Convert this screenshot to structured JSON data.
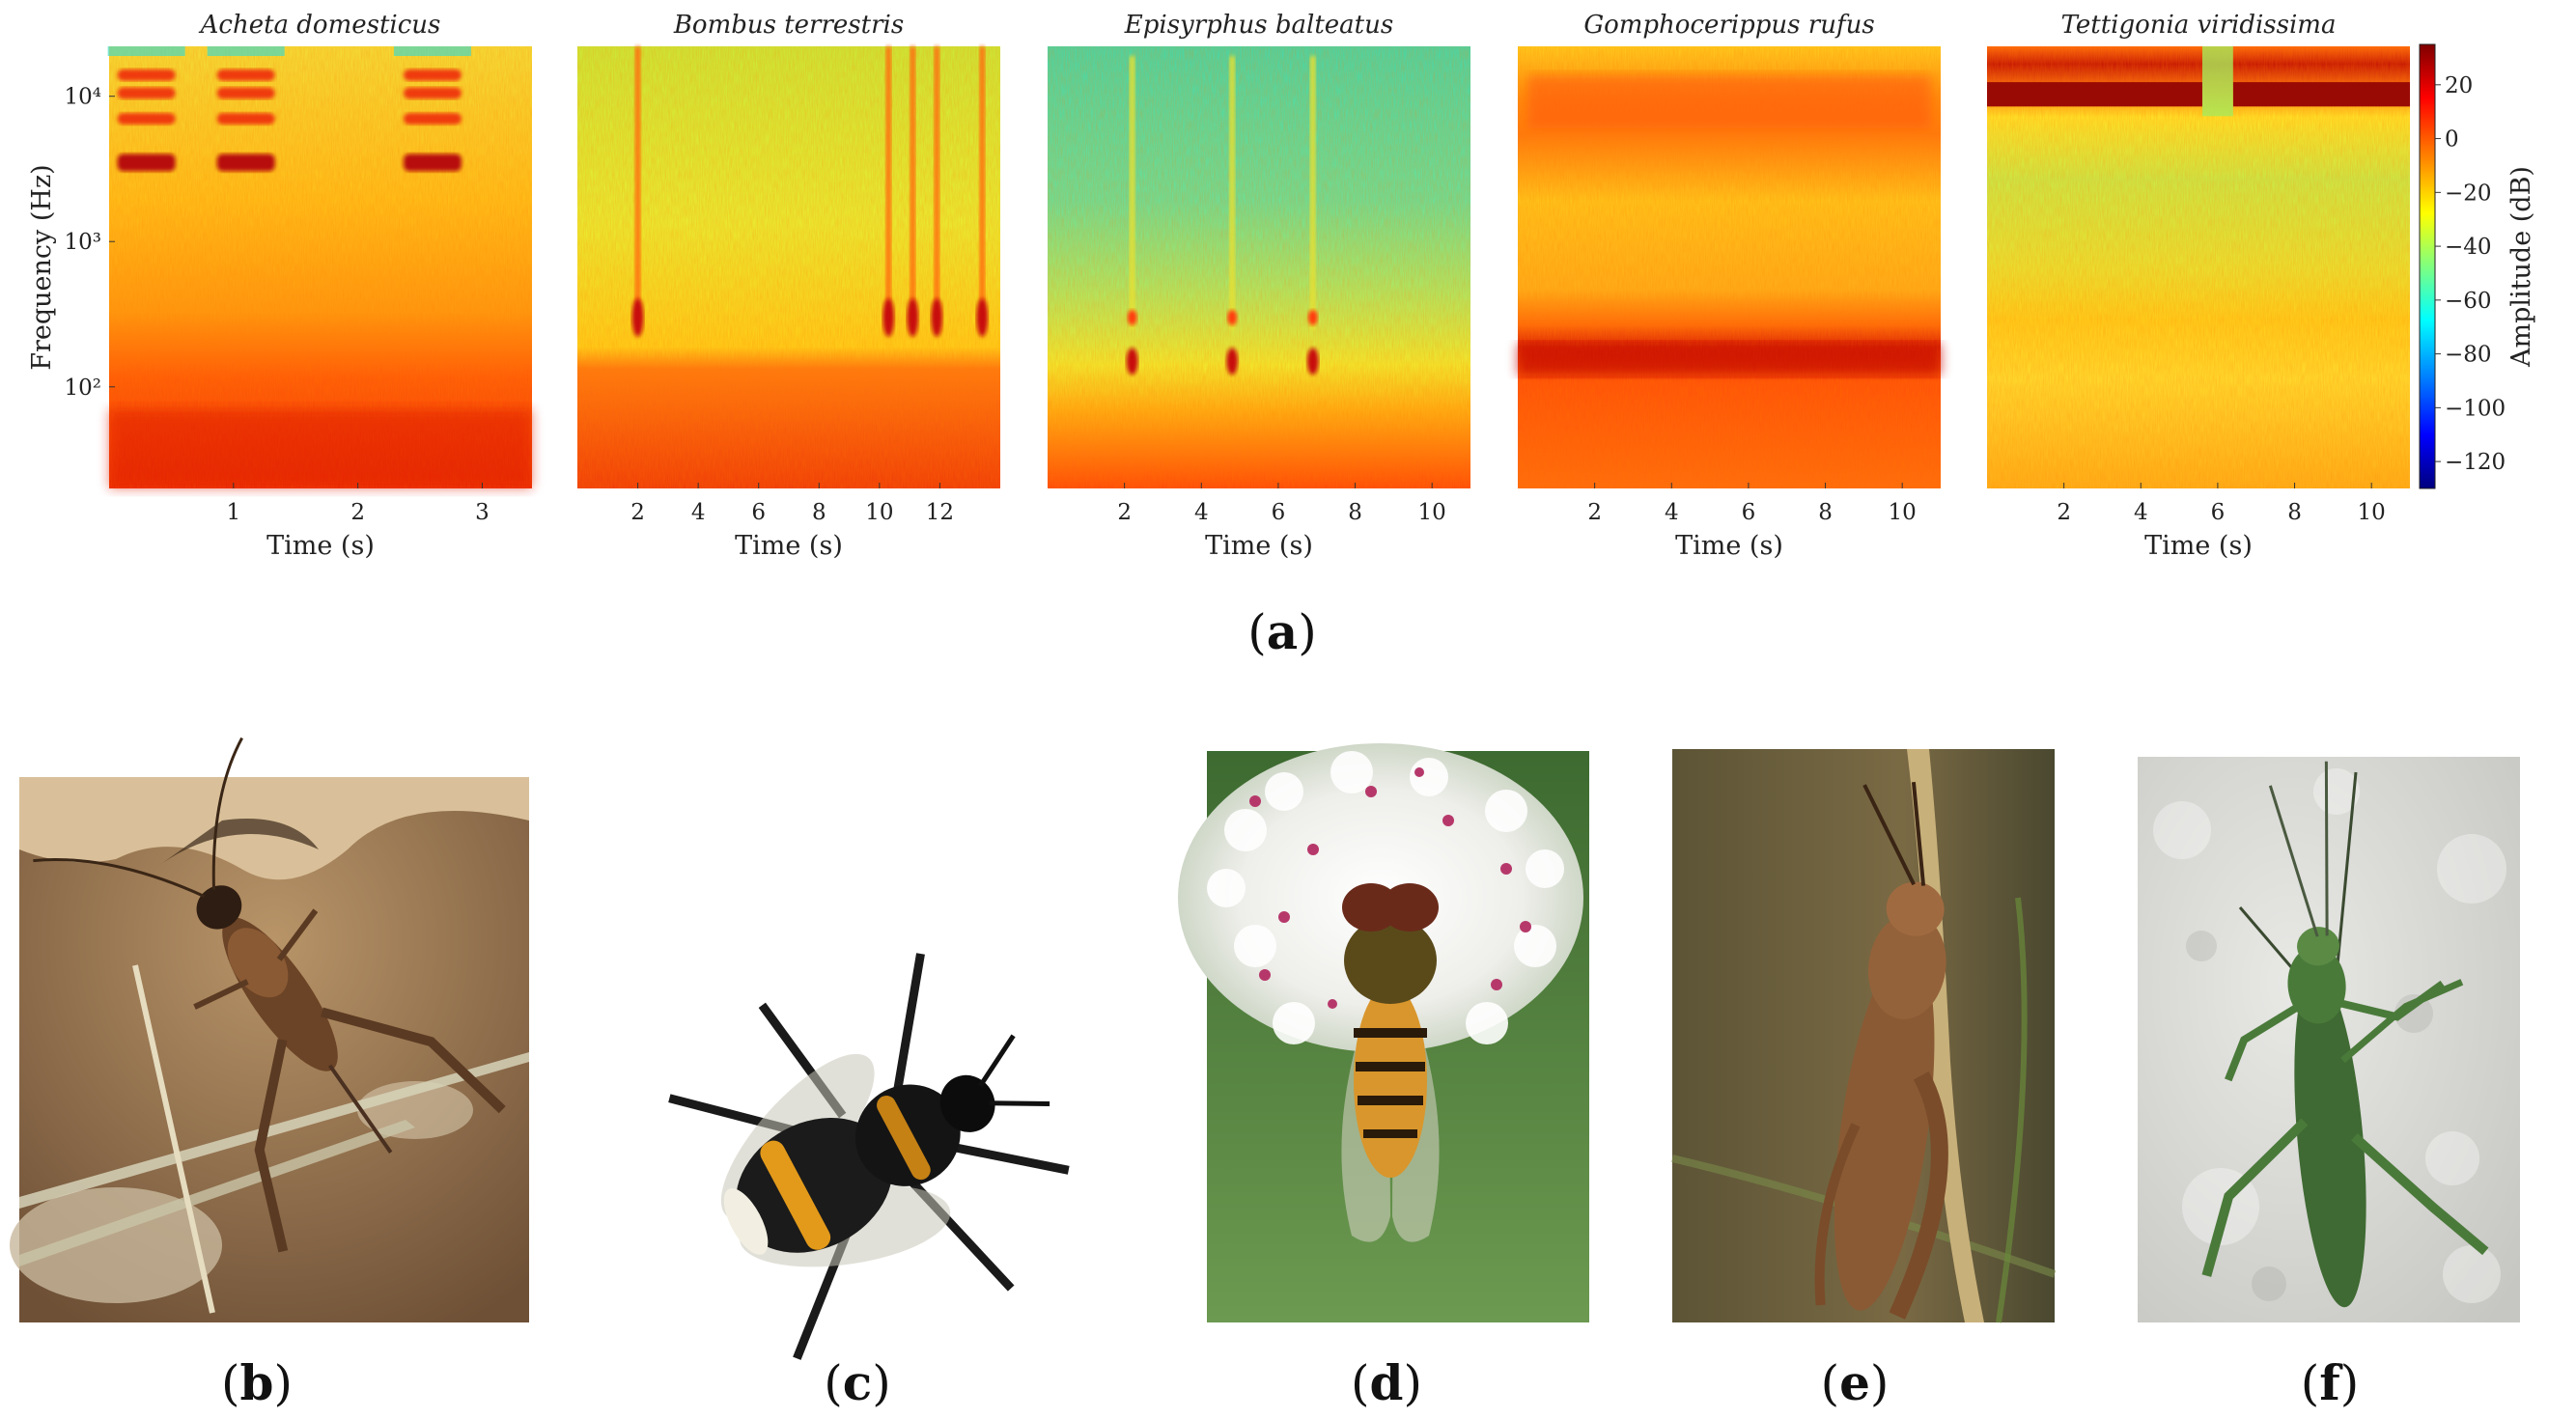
{
  "figure": {
    "panel_a_label": "(a)",
    "photo_labels": [
      "(b)",
      "(c)",
      "(d)",
      "(e)",
      "(f)"
    ]
  },
  "chart_data": [
    {
      "type": "heatmap",
      "title": "Acheta domesticus",
      "xlabel": "Time (s)",
      "ylabel": "Frequency (Hz)",
      "xlim": [
        0,
        3.4
      ],
      "xticks": [
        1,
        2,
        3
      ],
      "yscale": "log",
      "ylim": [
        20,
        22050
      ],
      "yticks": [
        {
          "v": 100,
          "label": "10²"
        },
        {
          "v": 1000,
          "label": "10³"
        },
        {
          "v": 10000,
          "label": "10⁴"
        }
      ],
      "features": {
        "chirp_times": [
          1.1,
          2.6
        ],
        "chirp_times_extra": [
          0.3
        ],
        "harmonic_freqs": [
          3500,
          7000,
          10500,
          14000
        ]
      }
    },
    {
      "type": "heatmap",
      "title": "Bombus terrestris",
      "xlabel": "Time (s)",
      "xlim": [
        0,
        14
      ],
      "xticks": [
        2,
        4,
        6,
        8,
        10,
        12
      ],
      "yscale": "log",
      "ylim": [
        20,
        22050
      ],
      "features": {
        "transient_times": [
          2.0,
          10.3,
          11.1,
          11.9,
          13.4
        ]
      }
    },
    {
      "type": "heatmap",
      "title": "Episyrphus balteatus",
      "xlabel": "Time (s)",
      "xlim": [
        0,
        11
      ],
      "xticks": [
        2,
        4,
        6,
        8,
        10
      ],
      "yscale": "log",
      "ylim": [
        20,
        22050
      ],
      "features": {
        "transient_times": [
          2.2,
          4.8,
          6.9
        ]
      }
    },
    {
      "type": "heatmap",
      "title": "Gomphocerippus rufus",
      "xlabel": "Time (s)",
      "xlim": [
        0,
        11
      ],
      "xticks": [
        2,
        4,
        6,
        8,
        10
      ],
      "yscale": "log",
      "ylim": [
        20,
        22050
      ],
      "features": {
        "band_low_hz": [
          120,
          200
        ],
        "band_high_hz": [
          6000,
          14000
        ]
      }
    },
    {
      "type": "heatmap",
      "title": "Tettigonia viridissima",
      "xlabel": "Time (s)",
      "xlim": [
        0,
        11
      ],
      "xticks": [
        2,
        4,
        6,
        8,
        10
      ],
      "yscale": "log",
      "ylim": [
        20,
        22050
      ],
      "features": {
        "band_hz": [
          8500,
          12500
        ],
        "gap_time": [
          5.6,
          6.4
        ]
      }
    }
  ],
  "colorbar": {
    "label": "Amplitude (dB)",
    "range": [
      -130,
      35
    ],
    "ticks": [
      20,
      0,
      -20,
      -40,
      -60,
      -80,
      -100,
      -120
    ],
    "tick_labels": [
      "20",
      "0",
      "−20",
      "−40",
      "−60",
      "−80",
      "−100",
      "−120"
    ],
    "colormap": [
      "#00007f",
      "#0000ff",
      "#007fff",
      "#00ffff",
      "#7fff7f",
      "#ffff00",
      "#ff7f00",
      "#ff0000",
      "#7f0000"
    ]
  },
  "photos": [
    {
      "name": "cricket-photo",
      "colors": {
        "bg": "#8a6a4a",
        "accent": "#c9a882",
        "subject": "#5b3a22"
      }
    },
    {
      "name": "bumblebee-photo",
      "colors": {
        "bg": "#ffffff",
        "accent": "#e8a51c",
        "subject": "#1a1a1a"
      }
    },
    {
      "name": "hoverfly-photo",
      "colors": {
        "bg": "#4e7a3c",
        "accent": "#f0f0ec",
        "subject": "#c7902e"
      }
    },
    {
      "name": "grasshopper-photo",
      "colors": {
        "bg": "#6a5a3a",
        "accent": "#c8b078",
        "subject": "#8a5a34"
      }
    },
    {
      "name": "bushcricket-photo",
      "colors": {
        "bg": "#d7d7d3",
        "accent": "#ececea",
        "subject": "#3f6a33"
      }
    }
  ]
}
